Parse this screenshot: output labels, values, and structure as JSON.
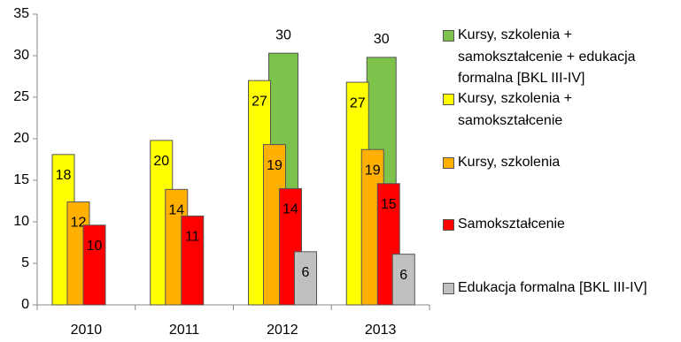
{
  "chart_data": {
    "type": "bar",
    "categories": [
      "2010",
      "2011",
      "2012",
      "2013"
    ],
    "series": [
      {
        "name": "Kursy, szkolenia + samokształcenie + edukacja formalna  [BKL III-IV]",
        "color": "#7dc24a",
        "values": [
          null,
          null,
          30.3,
          29.8
        ],
        "value_labels": [
          null,
          null,
          "30",
          "30"
        ]
      },
      {
        "name": "Kursy, szkolenia + samokształcenie",
        "color": "#ffff00",
        "values": [
          18.1,
          19.8,
          27.0,
          26.8
        ],
        "value_labels": [
          "18",
          "20",
          "27",
          "27"
        ]
      },
      {
        "name": "Kursy, szkolenia",
        "color": "#ffb000",
        "values": [
          12.4,
          13.9,
          19.3,
          18.7
        ],
        "value_labels": [
          "12",
          "14",
          "19",
          "19"
        ]
      },
      {
        "name": "Samokształcenie",
        "color": "#ff0000",
        "values": [
          9.6,
          10.7,
          14.0,
          14.6
        ],
        "value_labels": [
          "10",
          "11",
          "14",
          "15"
        ]
      },
      {
        "name": "Edukacja formalna [BKL III-IV]",
        "color": "#c0c0c0",
        "values": [
          null,
          null,
          6.4,
          6.1
        ],
        "value_labels": [
          null,
          null,
          "6",
          "6"
        ]
      }
    ],
    "ylim": [
      0,
      35
    ],
    "yticks": [
      0,
      5,
      10,
      15,
      20,
      25,
      30,
      35
    ],
    "grid": false
  }
}
